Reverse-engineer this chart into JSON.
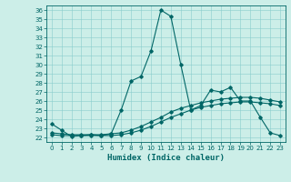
{
  "xlabel": "Humidex (Indice chaleur)",
  "xlim": [
    -0.5,
    23.5
  ],
  "ylim": [
    21.5,
    36.5
  ],
  "xticks": [
    0,
    1,
    2,
    3,
    4,
    5,
    6,
    7,
    8,
    9,
    10,
    11,
    12,
    13,
    14,
    15,
    16,
    17,
    18,
    19,
    20,
    21,
    22,
    23
  ],
  "yticks": [
    22,
    23,
    24,
    25,
    26,
    27,
    28,
    29,
    30,
    31,
    32,
    33,
    34,
    35,
    36
  ],
  "background_color": "#cceee8",
  "grid_color": "#88cccc",
  "line_color": "#006666",
  "line1_x": [
    0,
    1,
    2,
    3,
    4,
    5,
    6,
    7,
    8,
    9,
    10,
    11,
    12,
    13,
    14,
    15,
    16,
    17,
    18,
    19,
    20,
    21,
    22,
    23
  ],
  "line1_y": [
    23.5,
    22.8,
    22.1,
    22.2,
    22.3,
    22.2,
    22.4,
    25.0,
    28.2,
    28.7,
    31.5,
    36.0,
    35.3,
    30.0,
    25.0,
    25.5,
    27.2,
    27.0,
    27.5,
    26.0,
    26.0,
    24.2,
    22.5,
    22.2
  ],
  "line2_x": [
    0,
    1,
    2,
    3,
    4,
    5,
    6,
    7,
    8,
    9,
    10,
    11,
    12,
    13,
    14,
    15,
    16,
    17,
    18,
    19,
    20,
    21,
    22,
    23
  ],
  "line2_y": [
    22.5,
    22.4,
    22.3,
    22.3,
    22.3,
    22.3,
    22.4,
    22.5,
    22.8,
    23.2,
    23.7,
    24.2,
    24.8,
    25.2,
    25.5,
    25.8,
    26.0,
    26.2,
    26.3,
    26.4,
    26.4,
    26.3,
    26.1,
    25.9
  ],
  "line3_x": [
    0,
    1,
    2,
    3,
    4,
    5,
    6,
    7,
    8,
    9,
    10,
    11,
    12,
    13,
    14,
    15,
    16,
    17,
    18,
    19,
    20,
    21,
    22,
    23
  ],
  "line3_y": [
    22.3,
    22.2,
    22.2,
    22.2,
    22.2,
    22.2,
    22.2,
    22.3,
    22.5,
    22.8,
    23.2,
    23.7,
    24.2,
    24.6,
    25.0,
    25.3,
    25.5,
    25.7,
    25.8,
    25.9,
    25.9,
    25.8,
    25.7,
    25.5
  ],
  "tick_fontsize": 5,
  "label_fontsize": 6.5,
  "marker": "D",
  "markersize": 1.8,
  "linewidth": 0.8
}
